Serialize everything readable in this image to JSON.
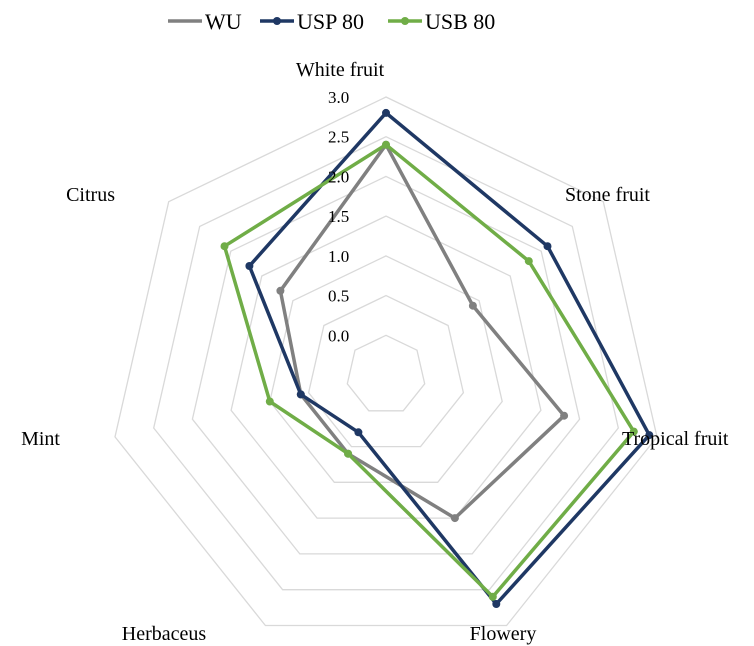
{
  "chart_data": {
    "type": "radar",
    "title": "",
    "categories": [
      "White fruit",
      "Stone fruit",
      "Tropical fruit",
      "Flowery",
      "Herbaceus",
      "Mint",
      "Citrus"
    ],
    "rlim": [
      -0.5,
      3.0
    ],
    "ticks": [
      "0.0",
      "0.5",
      "1.0",
      "1.5",
      "2.0",
      "2.5",
      "3.0"
    ],
    "tick_values": [
      0.0,
      0.5,
      1.0,
      1.5,
      2.0,
      2.5,
      3.0
    ],
    "grid": true,
    "legend_position": "top",
    "series": [
      {
        "name": "WU",
        "color": "#808080",
        "values": [
          2.4,
          0.9,
          1.8,
          1.5,
          0.6,
          0.6,
          1.2
        ]
      },
      {
        "name": "USP 80",
        "color": "#1f3864",
        "values": [
          2.8,
          2.1,
          2.9,
          2.7,
          0.3,
          0.6,
          1.7
        ]
      },
      {
        "name": "USB 80",
        "color": "#70ad47",
        "values": [
          2.4,
          1.8,
          2.7,
          2.6,
          0.6,
          1.0,
          2.1
        ]
      }
    ]
  }
}
